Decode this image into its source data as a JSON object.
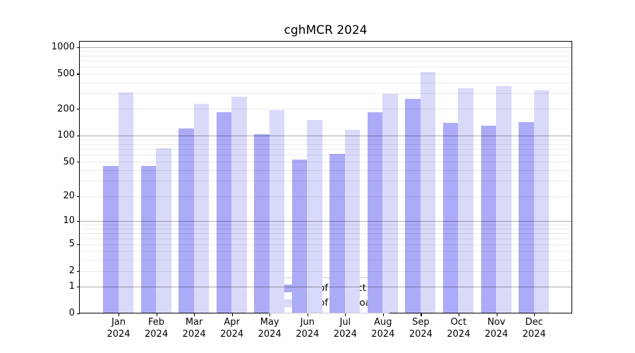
{
  "title": "cghMCR 2024",
  "year_label": "2024",
  "colors": {
    "distinct_ips": "#ababf8",
    "downloads": "#d9d9fa",
    "grid_major": "#00000054",
    "grid_minor": "#00000015",
    "axis": "#000000",
    "legend_border": "#cccccc"
  },
  "legend": {
    "items": [
      {
        "key": "distinct_ips",
        "label": "Nb of distinct IPs"
      },
      {
        "key": "downloads",
        "label": "Nb of downloads"
      }
    ]
  },
  "chart_data": {
    "type": "bar",
    "title": "cghMCR 2024",
    "categories": [
      "Jan",
      "Feb",
      "Mar",
      "Apr",
      "May",
      "Jun",
      "Jul",
      "Aug",
      "Sep",
      "Oct",
      "Nov",
      "Dec"
    ],
    "category_year": "2024",
    "series": [
      {
        "name": "Nb of distinct IPs",
        "color_key": "distinct_ips",
        "values": [
          45,
          45,
          119,
          185,
          104,
          53,
          62,
          185,
          260,
          140,
          129,
          142
        ]
      },
      {
        "name": "Nb of downloads",
        "color_key": "downloads",
        "values": [
          306,
          72,
          230,
          277,
          195,
          150,
          116,
          297,
          525,
          340,
          362,
          322
        ]
      }
    ],
    "yscale": "log1p",
    "yticks": [
      0,
      1,
      2,
      5,
      10,
      20,
      50,
      100,
      200,
      500,
      1000
    ],
    "ylim": [
      0,
      1150
    ],
    "grid": true,
    "grid_above_bars": true,
    "legend_position": "lower center"
  }
}
